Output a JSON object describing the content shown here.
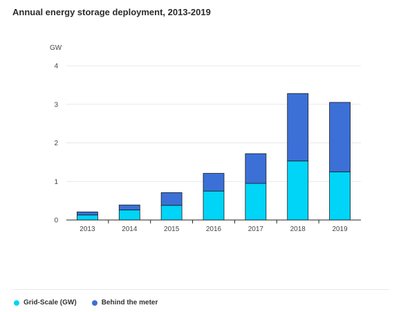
{
  "chart_data": {
    "type": "bar",
    "stacked": true,
    "title": "Annual energy storage deployment, 2013-2019",
    "ylabel": "GW",
    "xlabel": "",
    "categories": [
      "2013",
      "2014",
      "2015",
      "2016",
      "2017",
      "2018",
      "2019"
    ],
    "series": [
      {
        "name": "Grid-Scale (GW)",
        "color": "#00d4f7",
        "values": [
          0.13,
          0.26,
          0.38,
          0.75,
          0.95,
          1.53,
          1.25
        ]
      },
      {
        "name": "Behind the meter",
        "color": "#3c70d6",
        "values": [
          0.08,
          0.13,
          0.33,
          0.46,
          0.77,
          1.75,
          1.8
        ]
      }
    ],
    "ylim": [
      0,
      4
    ],
    "yticks": [
      "0",
      "1",
      "2",
      "3",
      "4"
    ],
    "grid": true,
    "legend_position": "bottom-left"
  }
}
